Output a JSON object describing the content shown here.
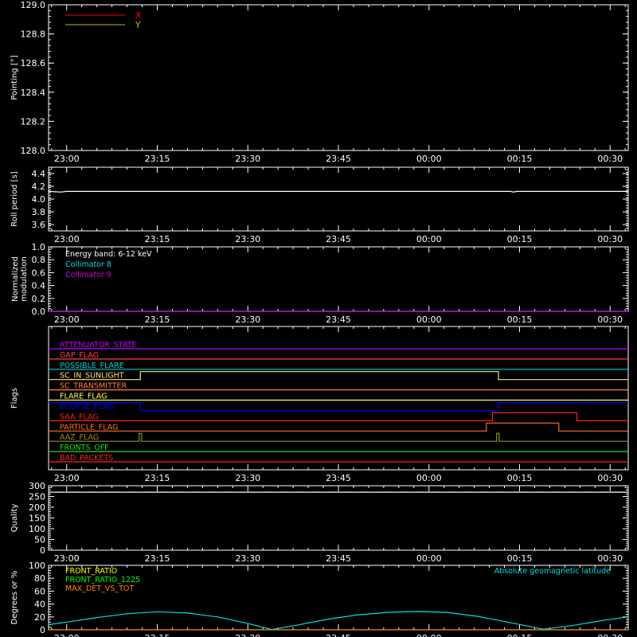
{
  "time_axis": {
    "ticks": [
      "23:00",
      "23:15",
      "23:30",
      "23:45",
      "00:00",
      "00:15",
      "00:30"
    ],
    "tick_minutes": [
      0,
      15,
      30,
      45,
      60,
      75,
      90
    ],
    "range_minutes": [
      -3,
      93
    ]
  },
  "chart_data": [
    {
      "type": "line",
      "ylabel": "Pointing [°]",
      "ylim": [
        128.0,
        129.0
      ],
      "yticks": [
        "128.0",
        "128.2",
        "128.4",
        "128.6",
        "128.8",
        "129.0"
      ],
      "ytick_values": [
        128.0,
        128.2,
        128.4,
        128.6,
        128.8,
        129.0
      ],
      "legend": [
        {
          "label": "X",
          "color": "#ff0000"
        },
        {
          "label": "Y",
          "color": "#c8b400"
        }
      ],
      "series": [
        {
          "name": "X",
          "color": "#ff0000",
          "points": []
        },
        {
          "name": "Y",
          "color": "#c8b400",
          "points": []
        }
      ]
    },
    {
      "type": "line",
      "ylabel": "Roll period [s]",
      "ylim": [
        3.5,
        4.5
      ],
      "yticks": [
        "3.6",
        "3.8",
        "4.0",
        "4.2",
        "4.4"
      ],
      "ytick_values": [
        3.6,
        3.8,
        4.0,
        4.2,
        4.4
      ],
      "series": [
        {
          "color": "#ffffff",
          "points": [
            [
              -3,
              4.12
            ],
            [
              -1,
              4.11
            ],
            [
              0,
              4.12
            ],
            [
              30,
              4.12
            ],
            [
              60,
              4.12
            ],
            [
              73.5,
              4.12
            ],
            [
              74,
              4.11
            ],
            [
              74.5,
              4.12
            ],
            [
              93,
              4.12
            ]
          ]
        }
      ]
    },
    {
      "type": "line",
      "ylabel": [
        "Normalized",
        "modulation"
      ],
      "ylim": [
        0.0,
        1.0
      ],
      "yticks": [
        "0.0",
        "0.2",
        "0.4",
        "0.6",
        "0.8",
        "1.0"
      ],
      "ytick_values": [
        0.0,
        0.2,
        0.4,
        0.6,
        0.8,
        1.0
      ],
      "annotations": [
        {
          "text": "Energy band: 6-12 keV",
          "color": "#ffffff"
        },
        {
          "text": "Collimator 8",
          "color": "#00e0e0"
        },
        {
          "text": "Collimator 9",
          "color": "#e000e0"
        }
      ],
      "series": [
        {
          "name": "Collimator 8",
          "color": "#00e0e0",
          "points": [
            [
              -3,
              0.0
            ],
            [
              93,
              0.0
            ]
          ]
        },
        {
          "name": "Collimator 9",
          "color": "#e000e0",
          "points": [
            [
              -3,
              0.0
            ],
            [
              93,
              0.0
            ]
          ]
        }
      ]
    },
    {
      "type": "line",
      "ylabel": "Flags",
      "flags": [
        {
          "label": "ATTENUATOR_STATE",
          "color": "#c000ff",
          "transitions": [
            [
              -3,
              0
            ],
            [
              93,
              0
            ]
          ]
        },
        {
          "label": "GAP_FLAG",
          "color": "#ff4040",
          "transitions": [
            [
              -3,
              0
            ],
            [
              93,
              0
            ]
          ]
        },
        {
          "label": "POSSIBLE_FLARE",
          "color": "#00d0d0",
          "transitions": [
            [
              -3,
              0
            ],
            [
              93,
              0
            ]
          ]
        },
        {
          "label": "SC_IN_SUNLIGHT",
          "color": "#ffe080",
          "transitions": [
            [
              -3,
              0
            ],
            [
              12.2,
              0
            ],
            [
              12.2,
              1
            ],
            [
              71.5,
              1
            ],
            [
              71.5,
              0
            ],
            [
              93,
              0
            ]
          ]
        },
        {
          "label": "SC_TRANSMITTER",
          "color": "#ff8040",
          "transitions": [
            [
              -3,
              0
            ],
            [
              93,
              0
            ]
          ]
        },
        {
          "label": "FLARE_FLAG",
          "color": "#ffff60",
          "transitions": [
            [
              -3,
              0
            ],
            [
              93,
              0
            ]
          ]
        },
        {
          "label": "ECLIPSE_FLAG",
          "color": "#0000ff",
          "transitions": [
            [
              -3,
              1
            ],
            [
              12.2,
              1
            ],
            [
              12.2,
              0
            ],
            [
              71.5,
              0
            ],
            [
              71.5,
              1
            ],
            [
              93,
              1
            ]
          ]
        },
        {
          "label": "SAA_FLAG",
          "color": "#ff2020",
          "transitions": [
            [
              -3,
              0
            ],
            [
              70.5,
              0
            ],
            [
              70.5,
              1
            ],
            [
              84.5,
              1
            ],
            [
              84.5,
              0
            ],
            [
              93,
              0
            ]
          ]
        },
        {
          "label": "PARTICLE_FLAG",
          "color": "#ff7020",
          "transitions": [
            [
              -3,
              0
            ],
            [
              69.5,
              0
            ],
            [
              69.5,
              1
            ],
            [
              81.5,
              1
            ],
            [
              81.5,
              0
            ],
            [
              93,
              0
            ]
          ]
        },
        {
          "label": "AAZ_FLAG",
          "color": "#909020",
          "transitions": [
            [
              -3,
              0
            ],
            [
              12,
              0
            ],
            [
              12,
              1
            ],
            [
              12.4,
              1
            ],
            [
              12.4,
              0
            ],
            [
              71.2,
              0
            ],
            [
              71.2,
              1
            ],
            [
              71.6,
              1
            ],
            [
              71.6,
              0
            ],
            [
              93,
              0
            ]
          ]
        },
        {
          "label": "FRONTS_OFF",
          "color": "#20e020",
          "transitions": [
            [
              -3,
              0
            ],
            [
              93,
              0
            ]
          ]
        },
        {
          "label": "BAD_PACKETS",
          "color": "#ff2020",
          "transitions": [
            [
              -3,
              0
            ],
            [
              93,
              0
            ]
          ]
        }
      ]
    },
    {
      "type": "line",
      "ylabel": "Quality",
      "ylim": [
        0,
        300
      ],
      "yticks": [
        "0",
        "50",
        "100",
        "150",
        "200",
        "250",
        "300"
      ],
      "ytick_values": [
        0,
        50,
        100,
        150,
        200,
        250,
        300
      ],
      "series": [
        {
          "color": "#ffffff",
          "points": [
            [
              -3,
              270
            ],
            [
              93,
              270
            ]
          ]
        }
      ]
    },
    {
      "type": "line",
      "ylabel": "Degrees or %",
      "ylim": [
        0,
        100
      ],
      "yticks": [
        "0",
        "20",
        "40",
        "60",
        "80",
        "100"
      ],
      "ytick_values": [
        0,
        20,
        40,
        60,
        80,
        100
      ],
      "legend": [
        {
          "label": "FRONT_RATIO",
          "color": "#ffff00"
        },
        {
          "label": "FRONT_RATIO_1225",
          "color": "#00ff00"
        },
        {
          "label": "MAX_DET_VS_TOT",
          "color": "#ff8000"
        }
      ],
      "annotation": {
        "text": "Absolute geomagnetic latitude",
        "color": "#00e0e0"
      },
      "series": [
        {
          "name": "Absolute geomagnetic latitude",
          "color": "#00e0e0",
          "points": [
            [
              -3,
              8
            ],
            [
              0,
              12
            ],
            [
              5,
              19
            ],
            [
              10,
              25
            ],
            [
              15,
              28
            ],
            [
              20,
              26
            ],
            [
              25,
              20
            ],
            [
              30,
              10
            ],
            [
              34,
              0.5
            ],
            [
              38,
              7
            ],
            [
              43,
              16
            ],
            [
              48,
              23
            ],
            [
              53,
              27
            ],
            [
              58,
              28.5
            ],
            [
              63,
              27
            ],
            [
              68,
              21
            ],
            [
              73,
              12
            ],
            [
              79,
              1
            ],
            [
              84,
              7
            ],
            [
              89,
              15
            ],
            [
              93,
              20
            ]
          ]
        },
        {
          "name": "MAX_DET_VS_TOT",
          "color": "#ff8000",
          "points": [
            [
              -3,
              0.3
            ],
            [
              93,
              0.3
            ]
          ]
        }
      ]
    }
  ]
}
